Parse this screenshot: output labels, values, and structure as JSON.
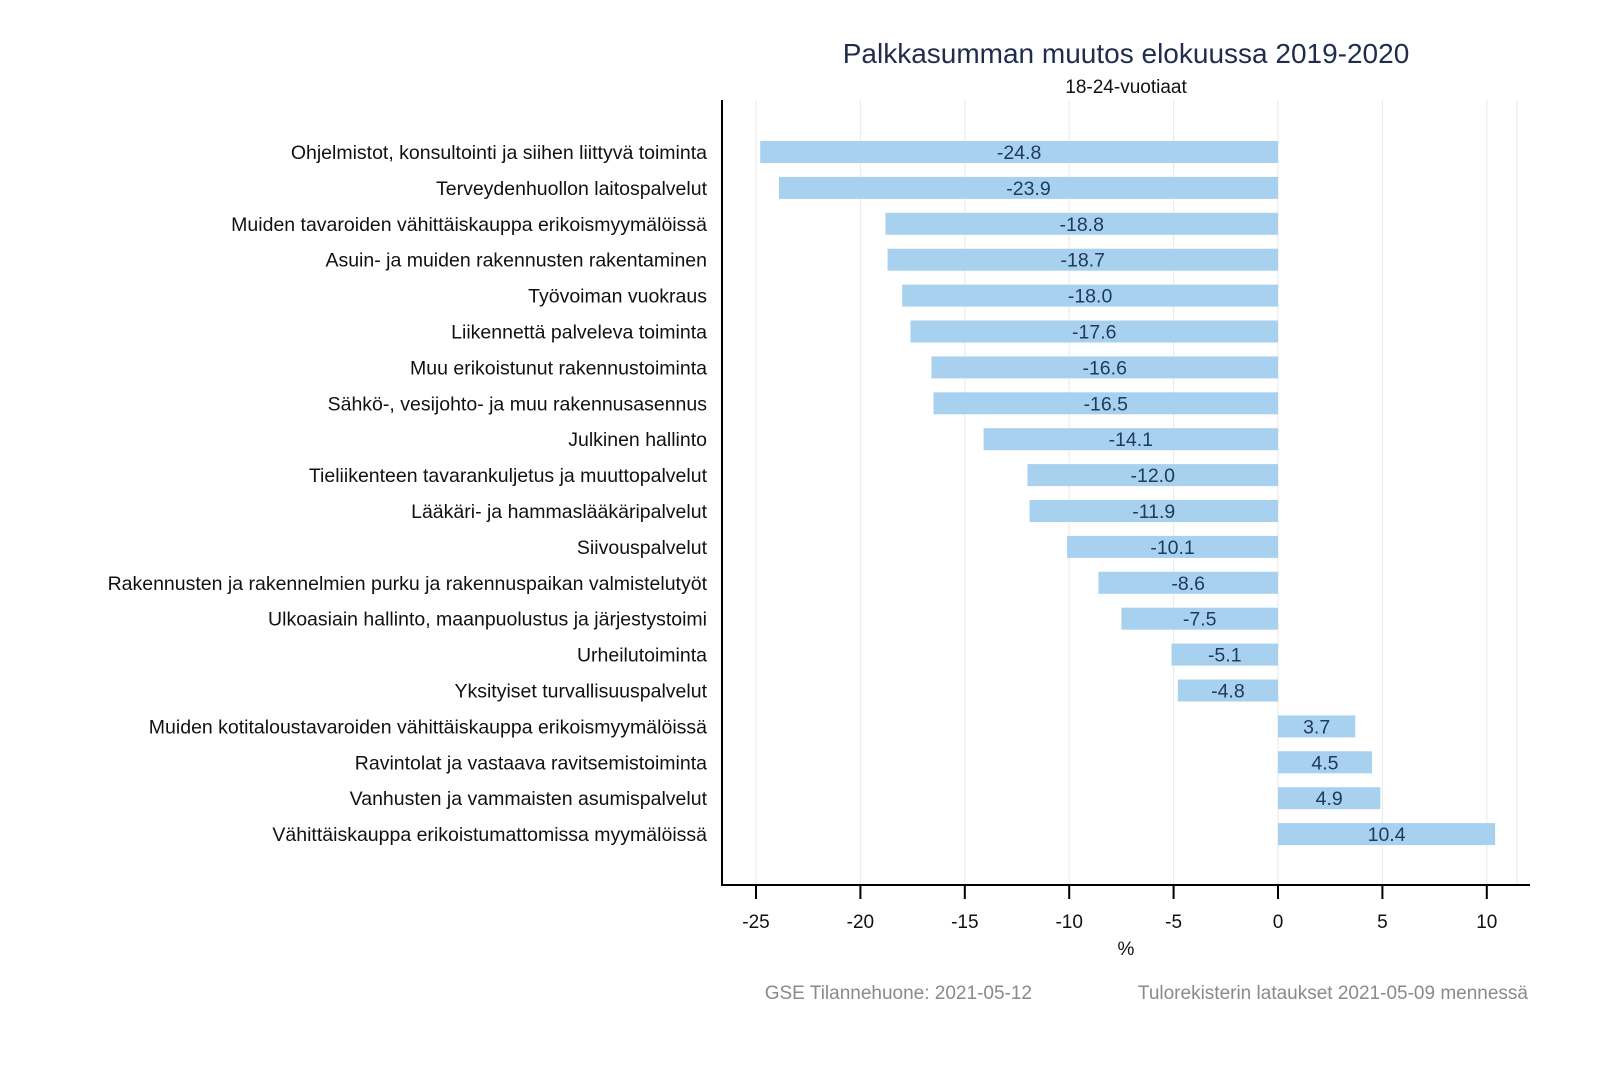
{
  "chart_data": {
    "type": "bar",
    "orientation": "horizontal",
    "title": "Palkkasumman muutos elokuussa 2019-2020",
    "subtitle": "18-24-vuotiaat",
    "xlabel": "%",
    "ylabel": "",
    "xlim": [
      -27,
      12
    ],
    "xticks": [
      -25,
      -20,
      -15,
      -10,
      -5,
      0,
      5,
      10
    ],
    "xtick_labels": [
      "-25",
      "-20",
      "-15",
      "-10",
      "-5",
      "0",
      "5",
      "10"
    ],
    "grid": true,
    "bar_color": "#a8d1ef",
    "label_color": "#1f3a5c",
    "categories": [
      "Ohjelmistot, konsultointi ja siihen liittyvä toiminta",
      "Terveydenhuollon laitospalvelut",
      "Muiden tavaroiden vähittäiskauppa erikoismyymälöissä",
      "Asuin- ja muiden rakennusten rakentaminen",
      "Työvoiman vuokraus",
      "Liikennettä palveleva toiminta",
      "Muu erikoistunut rakennustoiminta",
      "Sähkö-, vesijohto- ja muu rakennusasennus",
      "Julkinen hallinto",
      "Tieliikenteen tavarankuljetus ja muuttopalvelut",
      "Lääkäri- ja hammaslääkäripalvelut",
      "Siivouspalvelut",
      "Rakennusten ja rakennelmien purku ja rakennuspaikan valmistelutyöt",
      "Ulkoasiain hallinto, maanpuolustus ja järjestystoimi",
      "Urheilutoiminta",
      "Yksityiset turvallisuuspalvelut",
      "Muiden kotitaloustavaroiden vähittäiskauppa erikoismyymälöissä",
      "Ravintolat ja vastaava ravitsemistoiminta",
      "Vanhusten ja vammaisten asumispalvelut",
      "Vähittäiskauppa erikoistumattomissa myymälöissä"
    ],
    "values": [
      -24.8,
      -23.9,
      -18.8,
      -18.7,
      -18.0,
      -17.6,
      -16.6,
      -16.5,
      -14.1,
      -12.0,
      -11.9,
      -10.1,
      -8.6,
      -7.5,
      -5.1,
      -4.8,
      3.7,
      4.5,
      4.9,
      10.4
    ],
    "value_labels": [
      "-24.8",
      "-23.9",
      "-18.8",
      "-18.7",
      "-18.0",
      "-17.6",
      "-16.6",
      "-16.5",
      "-14.1",
      "-12.0",
      "-11.9",
      "-10.1",
      "-8.6",
      "-7.5",
      "-5.1",
      "-4.8",
      "3.7",
      "4.5",
      "4.9",
      "10.4"
    ]
  },
  "notes": {
    "source_left": "GSE Tilannehuone: 2021-05-12",
    "source_right": "Tulorekisterin lataukset 2021-05-09 mennessä"
  }
}
